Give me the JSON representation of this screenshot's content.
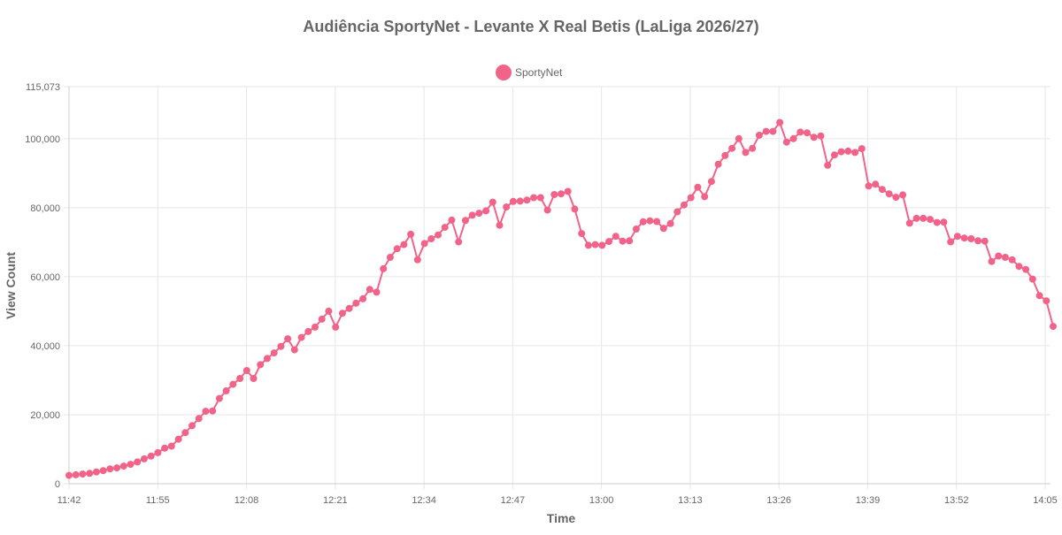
{
  "chart_data": {
    "type": "line",
    "title": "Audiência SportyNet - Levante X Real Betis (LaLiga 2026/27)",
    "xlabel": "Time",
    "ylabel": "View Count",
    "ylim": [
      0,
      115073
    ],
    "y_ticks": [
      "0",
      "20,000",
      "40,000",
      "60,000",
      "80,000",
      "100,000",
      "115,073"
    ],
    "x_ticks": [
      "11:42",
      "11:55",
      "12:08",
      "12:21",
      "12:34",
      "12:47",
      "13:00",
      "13:13",
      "13:26",
      "13:39",
      "13:52",
      "14:05"
    ],
    "grid": true,
    "legend_position": "top-center",
    "colors": {
      "series": "#f26389",
      "grid": "#e6e6e6",
      "text": "#666666"
    },
    "series": [
      {
        "name": "SportyNet",
        "values": [
          2400,
          2600,
          2800,
          3000,
          3400,
          3800,
          4300,
          4600,
          5100,
          5600,
          6300,
          7200,
          8000,
          9000,
          10300,
          10900,
          12900,
          14800,
          16800,
          18900,
          21000,
          21100,
          24700,
          26900,
          28800,
          30500,
          32800,
          30500,
          34500,
          36300,
          37900,
          39800,
          42000,
          38800,
          42400,
          44100,
          45400,
          47700,
          50000,
          45400,
          49400,
          50800,
          52300,
          53600,
          56300,
          55500,
          62300,
          65600,
          68100,
          69300,
          72300,
          64900,
          69600,
          71000,
          72100,
          74300,
          76400,
          70100,
          76300,
          77800,
          78400,
          79100,
          81600,
          74900,
          80200,
          81800,
          81900,
          82200,
          82900,
          82900,
          79300,
          83800,
          84000,
          84700,
          79600,
          72500,
          69100,
          69300,
          69100,
          70200,
          71700,
          70300,
          70400,
          73800,
          75900,
          76200,
          76000,
          74000,
          75400,
          78800,
          80800,
          82900,
          85900,
          83200,
          87600,
          92600,
          95100,
          97200,
          100000,
          96000,
          97200,
          101000,
          102100,
          102100,
          104700,
          99000,
          100000,
          101900,
          101700,
          100400,
          100800,
          92300,
          95300,
          96200,
          96400,
          96000,
          97100,
          86300,
          86800,
          85300,
          84000,
          83000,
          83700,
          75500,
          76900,
          76900,
          76600,
          75700,
          75800,
          70100,
          71700,
          71200,
          71000,
          70400,
          70300,
          64400,
          66000,
          65600,
          64900,
          63000,
          62100,
          59300,
          54500,
          53000,
          45600
        ]
      }
    ]
  }
}
